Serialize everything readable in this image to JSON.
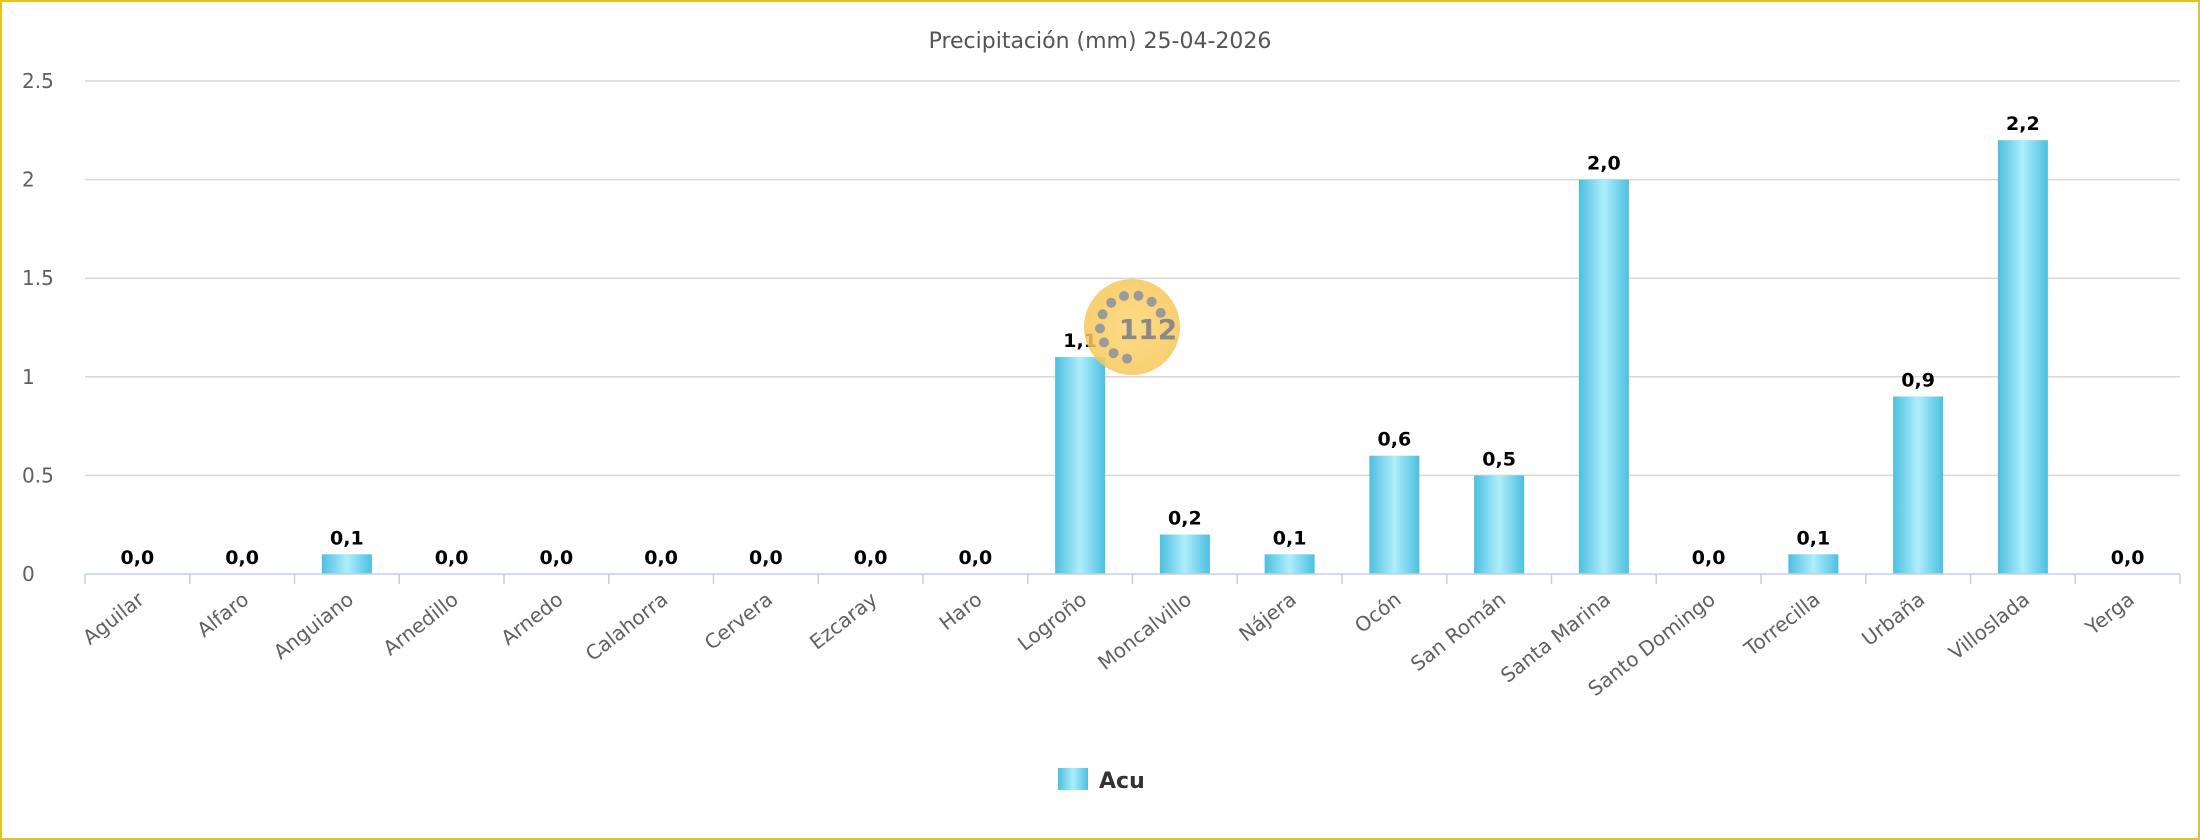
{
  "chart_data": {
    "type": "bar",
    "title": "Precipitación (mm) 25-04-2026",
    "xlabel": "",
    "ylabel": "",
    "ylim": [
      0,
      2.5
    ],
    "yticks": [
      0,
      0.5,
      1,
      1.5,
      2,
      2.5
    ],
    "ytick_labels": [
      "0",
      "0.5",
      "1",
      "1.5",
      "2",
      "2.5"
    ],
    "categories": [
      "Aguilar",
      "Alfaro",
      "Anguiano",
      "Arnedillo",
      "Arnedo",
      "Calahorra",
      "Cervera",
      "Ezcaray",
      "Haro",
      "Logroño",
      "Moncalvillo",
      "Nájera",
      "Ocón",
      "San Román",
      "Santa Marina",
      "Santo Domingo",
      "Torrecilla",
      "Urbaña",
      "Villoslada",
      "Yerga"
    ],
    "series": [
      {
        "name": "Acu",
        "color": "#5ccbe8",
        "values": [
          0.0,
          0.0,
          0.1,
          0.0,
          0.0,
          0.0,
          0.0,
          0.0,
          0.0,
          1.1,
          0.2,
          0.1,
          0.6,
          0.5,
          2.0,
          0.0,
          0.1,
          0.9,
          2.2,
          0.0
        ],
        "data_labels": [
          "0,0",
          "0,0",
          "0,1",
          "0,0",
          "0,0",
          "0,0",
          "0,0",
          "0,0",
          "0,0",
          "1,1",
          "0,2",
          "0,1",
          "0,6",
          "0,5",
          "2,0",
          "0,0",
          "0,1",
          "0,9",
          "2,2",
          "0,0"
        ]
      }
    ],
    "grid": true,
    "legend": "bottom-center"
  },
  "watermark": {
    "text": "112",
    "color": "#f5c842"
  },
  "frame_color": "#e8c21c"
}
